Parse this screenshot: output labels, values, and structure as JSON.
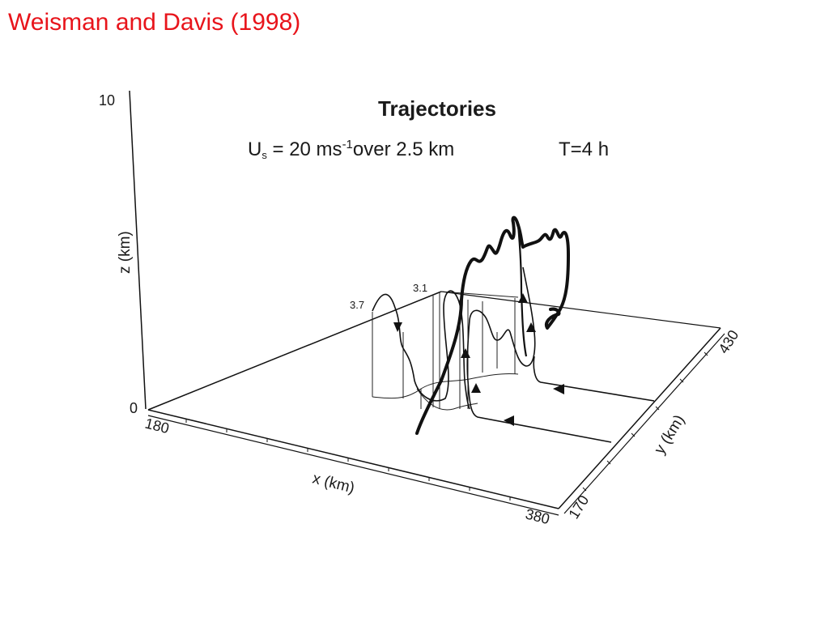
{
  "slide": {
    "title": "Weisman and Davis (1998)",
    "title_color": "#e8141b"
  },
  "figure": {
    "title": "Trajectories",
    "subtitle": {
      "u_symbol": "U",
      "u_subscript": "s",
      "eq": " = 20 ms",
      "exp": "-1",
      "rest": "over 2.5 km",
      "time": "T=4 h"
    },
    "axes": {
      "z_label": "z (km)",
      "x_label": "x (km)",
      "y_label": "y (km)",
      "z_ticks": [
        "10",
        "0"
      ],
      "x_ticks": [
        "180",
        "380"
      ],
      "y_ticks": [
        "170",
        "430"
      ]
    },
    "curve_labels": [
      "3.7",
      "3.1"
    ]
  }
}
